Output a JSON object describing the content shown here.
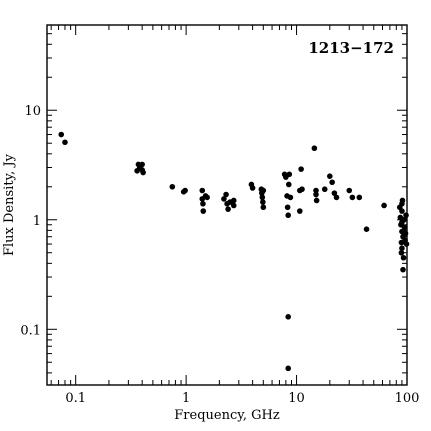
{
  "chart_data": {
    "type": "scatter",
    "title": "1213−172",
    "xlabel": "Frequency, GHz",
    "ylabel": "Flux Density, Jy",
    "xscale": "log",
    "yscale": "log",
    "xlim": [
      0.055,
      100
    ],
    "ylim": [
      0.031,
      60
    ],
    "x_ticks": [
      {
        "value": 0.1,
        "label": "0.1"
      },
      {
        "value": 1,
        "label": "1"
      },
      {
        "value": 10,
        "label": "10"
      },
      {
        "value": 100,
        "label": "100"
      }
    ],
    "y_ticks": [
      {
        "value": 0.1,
        "label": "0.1"
      },
      {
        "value": 1,
        "label": "1"
      },
      {
        "value": 10,
        "label": "10"
      }
    ],
    "grid": false,
    "legend": "none",
    "marker_color": "#000000",
    "points": [
      {
        "x": 0.074,
        "y": 6.0
      },
      {
        "x": 0.08,
        "y": 5.1
      },
      {
        "x": 0.36,
        "y": 2.8
      },
      {
        "x": 0.37,
        "y": 3.2
      },
      {
        "x": 0.38,
        "y": 3.0
      },
      {
        "x": 0.4,
        "y": 3.2
      },
      {
        "x": 0.4,
        "y": 2.85
      },
      {
        "x": 0.408,
        "y": 2.7
      },
      {
        "x": 0.75,
        "y": 2.0
      },
      {
        "x": 0.95,
        "y": 1.8
      },
      {
        "x": 0.98,
        "y": 1.85
      },
      {
        "x": 1.4,
        "y": 1.85
      },
      {
        "x": 1.4,
        "y": 1.55
      },
      {
        "x": 1.42,
        "y": 1.4
      },
      {
        "x": 1.43,
        "y": 1.2
      },
      {
        "x": 1.5,
        "y": 1.65
      },
      {
        "x": 1.55,
        "y": 1.6
      },
      {
        "x": 2.2,
        "y": 1.55
      },
      {
        "x": 2.3,
        "y": 1.7
      },
      {
        "x": 2.35,
        "y": 1.4
      },
      {
        "x": 2.4,
        "y": 1.25
      },
      {
        "x": 2.5,
        "y": 1.45
      },
      {
        "x": 2.7,
        "y": 1.5
      },
      {
        "x": 2.7,
        "y": 1.35
      },
      {
        "x": 3.9,
        "y": 2.1
      },
      {
        "x": 4.0,
        "y": 1.95
      },
      {
        "x": 4.8,
        "y": 1.9
      },
      {
        "x": 4.85,
        "y": 1.75
      },
      {
        "x": 4.9,
        "y": 1.6
      },
      {
        "x": 4.95,
        "y": 1.45
      },
      {
        "x": 5.0,
        "y": 1.3
      },
      {
        "x": 5.0,
        "y": 1.85
      },
      {
        "x": 7.8,
        "y": 2.6
      },
      {
        "x": 8.0,
        "y": 2.45
      },
      {
        "x": 8.2,
        "y": 1.65
      },
      {
        "x": 8.3,
        "y": 1.3
      },
      {
        "x": 8.4,
        "y": 1.1
      },
      {
        "x": 8.4,
        "y": 0.13
      },
      {
        "x": 8.4,
        "y": 0.044
      },
      {
        "x": 8.5,
        "y": 2.1
      },
      {
        "x": 8.6,
        "y": 2.6
      },
      {
        "x": 8.8,
        "y": 1.6
      },
      {
        "x": 10.7,
        "y": 1.85
      },
      {
        "x": 10.7,
        "y": 1.2
      },
      {
        "x": 11.0,
        "y": 2.9
      },
      {
        "x": 11.2,
        "y": 1.9
      },
      {
        "x": 14.5,
        "y": 4.5
      },
      {
        "x": 15.0,
        "y": 1.85
      },
      {
        "x": 15.0,
        "y": 1.7
      },
      {
        "x": 15.2,
        "y": 1.5
      },
      {
        "x": 18.0,
        "y": 1.9
      },
      {
        "x": 20.0,
        "y": 2.5
      },
      {
        "x": 21.0,
        "y": 2.2
      },
      {
        "x": 22.0,
        "y": 1.75
      },
      {
        "x": 23.0,
        "y": 1.6
      },
      {
        "x": 30.0,
        "y": 1.85
      },
      {
        "x": 32.0,
        "y": 1.6
      },
      {
        "x": 37.0,
        "y": 1.6
      },
      {
        "x": 43.0,
        "y": 0.82
      },
      {
        "x": 62.0,
        "y": 1.35
      },
      {
        "x": 86.0,
        "y": 1.3
      },
      {
        "x": 87.0,
        "y": 1.05
      },
      {
        "x": 88.0,
        "y": 0.9
      },
      {
        "x": 89.0,
        "y": 0.62
      },
      {
        "x": 89.0,
        "y": 0.5
      },
      {
        "x": 90.0,
        "y": 1.4
      },
      {
        "x": 90.0,
        "y": 1.2
      },
      {
        "x": 90.0,
        "y": 0.95
      },
      {
        "x": 90.0,
        "y": 0.78
      },
      {
        "x": 90.0,
        "y": 0.55
      },
      {
        "x": 91.0,
        "y": 1.5
      },
      {
        "x": 92.0,
        "y": 0.7
      },
      {
        "x": 92.0,
        "y": 0.35
      },
      {
        "x": 93.0,
        "y": 0.45
      },
      {
        "x": 94.0,
        "y": 1.0
      },
      {
        "x": 95.0,
        "y": 0.85
      },
      {
        "x": 96.0,
        "y": 0.65
      },
      {
        "x": 97.0,
        "y": 0.75
      },
      {
        "x": 98.0,
        "y": 1.1
      },
      {
        "x": 99.0,
        "y": 0.6
      }
    ]
  }
}
